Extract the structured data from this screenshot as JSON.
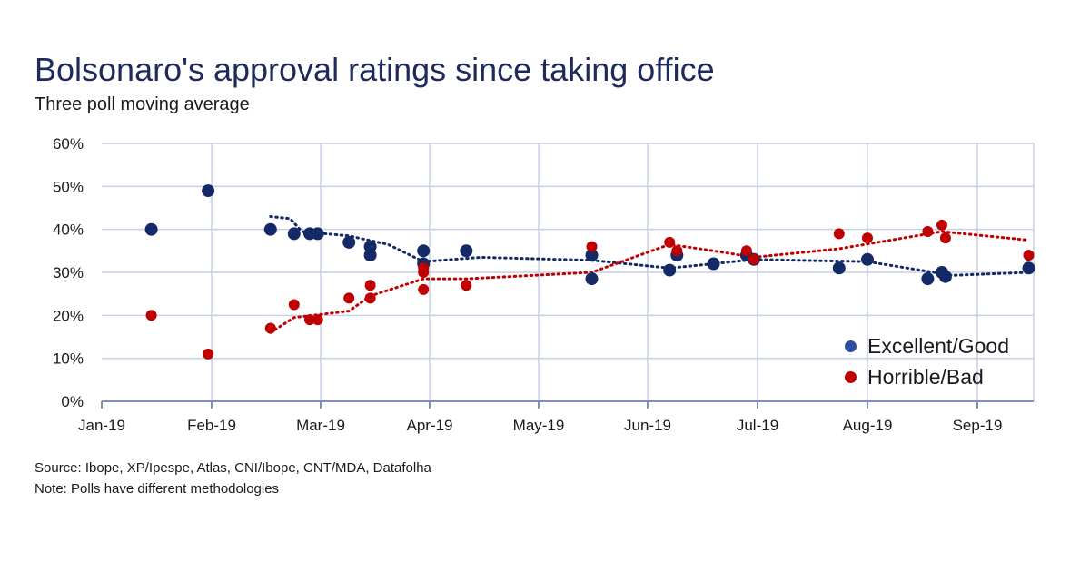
{
  "title": "Bolsonaro's approval ratings since taking office",
  "subtitle": "Three poll moving average",
  "source": "Source: Ibope, XP/Ipespe, Atlas, CNI/Ibope, CNT/MDA, Datafolha",
  "note": "Note: Polls have different methodologies",
  "colors": {
    "excellent": "#142a66",
    "horrible": "#c00000",
    "grid": "#c9cfe6",
    "legend_excellent": "#2e4fa0"
  },
  "chart_data": {
    "type": "scatter",
    "title": "Bolsonaro's approval ratings since taking office",
    "subtitle": "Three poll moving average",
    "x_ticks": [
      "Jan-19",
      "Feb-19",
      "Mar-19",
      "Apr-19",
      "May-19",
      "Jun-19",
      "Jul-19",
      "Aug-19",
      "Sep-19"
    ],
    "y_ticks": [
      "0%",
      "10%",
      "20%",
      "30%",
      "40%",
      "50%",
      "60%"
    ],
    "ylim": [
      0,
      60
    ],
    "grid": true,
    "legend_position": "bottom-right",
    "series": [
      {
        "name": "Excellent/Good",
        "color": "#142a66",
        "points": [
          {
            "x": "2019-01-15",
            "y": 40
          },
          {
            "x": "2019-01-31",
            "y": 49
          },
          {
            "x": "2019-02-16",
            "y": 40
          },
          {
            "x": "2019-02-22",
            "y": 39
          },
          {
            "x": "2019-02-26",
            "y": 39
          },
          {
            "x": "2019-02-28",
            "y": 39
          },
          {
            "x": "2019-03-09",
            "y": 37
          },
          {
            "x": "2019-03-15",
            "y": 36
          },
          {
            "x": "2019-03-15",
            "y": 34
          },
          {
            "x": "2019-03-30",
            "y": 35
          },
          {
            "x": "2019-03-30",
            "y": 32
          },
          {
            "x": "2019-04-11",
            "y": 35
          },
          {
            "x": "2019-05-16",
            "y": 34
          },
          {
            "x": "2019-05-16",
            "y": 28.5
          },
          {
            "x": "2019-06-07",
            "y": 30.5
          },
          {
            "x": "2019-06-09",
            "y": 34
          },
          {
            "x": "2019-06-19",
            "y": 32
          },
          {
            "x": "2019-06-28",
            "y": 34
          },
          {
            "x": "2019-06-30",
            "y": 33
          },
          {
            "x": "2019-07-24",
            "y": 31
          },
          {
            "x": "2019-08-01",
            "y": 33
          },
          {
            "x": "2019-08-18",
            "y": 28.5
          },
          {
            "x": "2019-08-22",
            "y": 30
          },
          {
            "x": "2019-08-23",
            "y": 29
          },
          {
            "x": "2019-09-15",
            "y": 31
          }
        ],
        "trend": [
          {
            "x": "2019-02-16",
            "y": 43
          },
          {
            "x": "2019-02-21",
            "y": 42.5
          },
          {
            "x": "2019-02-24",
            "y": 39.5
          },
          {
            "x": "2019-03-09",
            "y": 38.5
          },
          {
            "x": "2019-03-20",
            "y": 36.5
          },
          {
            "x": "2019-03-30",
            "y": 32.5
          },
          {
            "x": "2019-04-15",
            "y": 33.5
          },
          {
            "x": "2019-05-16",
            "y": 32.8
          },
          {
            "x": "2019-06-07",
            "y": 31
          },
          {
            "x": "2019-06-19",
            "y": 32
          },
          {
            "x": "2019-06-30",
            "y": 33
          },
          {
            "x": "2019-08-01",
            "y": 32.5
          },
          {
            "x": "2019-08-25",
            "y": 29.3
          },
          {
            "x": "2019-09-15",
            "y": 30
          }
        ]
      },
      {
        "name": "Horrible/Bad",
        "color": "#c00000",
        "points": [
          {
            "x": "2019-01-15",
            "y": 20
          },
          {
            "x": "2019-01-31",
            "y": 11
          },
          {
            "x": "2019-02-16",
            "y": 17
          },
          {
            "x": "2019-02-22",
            "y": 22.5
          },
          {
            "x": "2019-02-26",
            "y": 19
          },
          {
            "x": "2019-02-28",
            "y": 19
          },
          {
            "x": "2019-03-09",
            "y": 24
          },
          {
            "x": "2019-03-15",
            "y": 27
          },
          {
            "x": "2019-03-15",
            "y": 24
          },
          {
            "x": "2019-03-30",
            "y": 31
          },
          {
            "x": "2019-03-30",
            "y": 30
          },
          {
            "x": "2019-03-30",
            "y": 26
          },
          {
            "x": "2019-04-11",
            "y": 27
          },
          {
            "x": "2019-05-16",
            "y": 36
          },
          {
            "x": "2019-06-07",
            "y": 37
          },
          {
            "x": "2019-06-09",
            "y": 35
          },
          {
            "x": "2019-06-28",
            "y": 35
          },
          {
            "x": "2019-06-30",
            "y": 33
          },
          {
            "x": "2019-07-24",
            "y": 39
          },
          {
            "x": "2019-08-01",
            "y": 38
          },
          {
            "x": "2019-08-18",
            "y": 39.5
          },
          {
            "x": "2019-08-22",
            "y": 41
          },
          {
            "x": "2019-08-23",
            "y": 38
          },
          {
            "x": "2019-09-15",
            "y": 34
          }
        ],
        "trend": [
          {
            "x": "2019-02-16",
            "y": 16
          },
          {
            "x": "2019-02-22",
            "y": 19.5
          },
          {
            "x": "2019-03-09",
            "y": 21
          },
          {
            "x": "2019-03-15",
            "y": 24.5
          },
          {
            "x": "2019-03-30",
            "y": 28.5
          },
          {
            "x": "2019-04-11",
            "y": 28.5
          },
          {
            "x": "2019-05-16",
            "y": 30
          },
          {
            "x": "2019-06-07",
            "y": 36.5
          },
          {
            "x": "2019-06-19",
            "y": 35
          },
          {
            "x": "2019-06-30",
            "y": 33.5
          },
          {
            "x": "2019-07-24",
            "y": 35.5
          },
          {
            "x": "2019-08-22",
            "y": 39.5
          },
          {
            "x": "2019-09-15",
            "y": 37.5
          }
        ]
      }
    ]
  }
}
